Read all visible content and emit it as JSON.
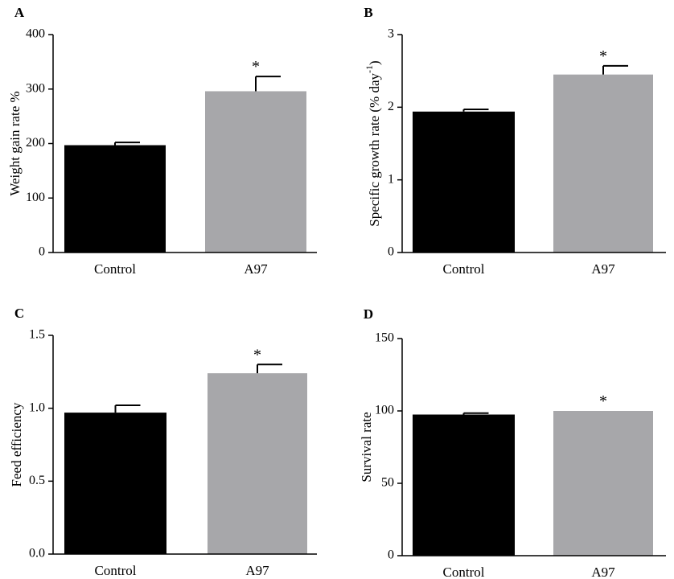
{
  "colors": {
    "control": "#000000",
    "treatment": "#a7a7aa",
    "axis": "#000000"
  },
  "chart_data": [
    {
      "panel": "A",
      "type": "bar",
      "categories": [
        "Control",
        "A97"
      ],
      "values": [
        197,
        296
      ],
      "errors": [
        5,
        27
      ],
      "significance": [
        "",
        "*"
      ],
      "ylabel": "Weight gain rate %",
      "ylabel_sup": "",
      "ylabel_tail": "",
      "ylim": [
        0,
        400
      ],
      "yticks": [
        0,
        100,
        200,
        300,
        400
      ],
      "ytick_labels": [
        "0",
        "100",
        "200",
        "300",
        "400"
      ]
    },
    {
      "panel": "B",
      "type": "bar",
      "categories": [
        "Control",
        "A97"
      ],
      "values": [
        1.94,
        2.45
      ],
      "errors": [
        0.03,
        0.12
      ],
      "significance": [
        "",
        "*"
      ],
      "ylabel": "Specific growth rate (% day",
      "ylabel_sup": "-1",
      "ylabel_tail": ")",
      "ylim": [
        0,
        3
      ],
      "yticks": [
        0,
        1,
        2,
        3
      ],
      "ytick_labels": [
        "0",
        "1",
        "2",
        "3"
      ]
    },
    {
      "panel": "C",
      "type": "bar",
      "categories": [
        "Control",
        "A97"
      ],
      "values": [
        0.97,
        1.24
      ],
      "errors": [
        0.05,
        0.06
      ],
      "significance": [
        "",
        "*"
      ],
      "ylabel": "Feed efficiency",
      "ylabel_sup": "",
      "ylabel_tail": "",
      "ylim": [
        0,
        1.5
      ],
      "yticks": [
        0,
        0.5,
        1.0,
        1.5
      ],
      "ytick_labels": [
        "0.0",
        "0.5",
        "1.0",
        "1.5"
      ]
    },
    {
      "panel": "D",
      "type": "bar",
      "categories": [
        "Control",
        "A97"
      ],
      "values": [
        97.5,
        100
      ],
      "errors": [
        1,
        0
      ],
      "significance": [
        "",
        "*"
      ],
      "ylabel": "Survival rate",
      "ylabel_sup": "",
      "ylabel_tail": "",
      "ylim": [
        0,
        150
      ],
      "yticks": [
        0,
        50,
        100,
        150
      ],
      "ytick_labels": [
        "0",
        "50",
        "100",
        "150"
      ]
    }
  ]
}
